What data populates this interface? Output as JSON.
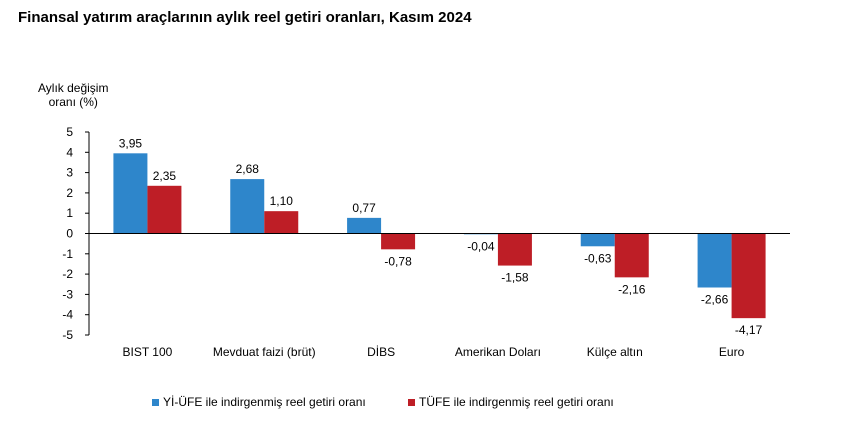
{
  "chart_data": {
    "type": "bar",
    "title": "Finansal yatırım araçlarının aylık reel getiri oranları, Kasım 2024",
    "ylabel_lines": [
      "Aylık değişim",
      "oranı (%)"
    ],
    "xlabel": "",
    "categories": [
      "BIST 100",
      "Mevduat faizi (brüt)",
      "DİBS",
      "Amerikan Doları",
      "Külçe altın",
      "Euro"
    ],
    "ylim": [
      -5,
      5
    ],
    "yticks": [
      5,
      4,
      3,
      2,
      1,
      0,
      -1,
      -2,
      -3,
      -4,
      -5
    ],
    "grid": false,
    "legend_position": "bottom",
    "series": [
      {
        "name": "Yİ-ÜFE ile indirgenmiş reel getiri oranı",
        "color": "#2e86cb",
        "values": [
          3.95,
          2.68,
          0.77,
          -0.04,
          -0.63,
          -2.66
        ],
        "labels": [
          "3,95",
          "2,68",
          "0,77",
          "-0,04",
          "-0,63",
          "-2,66"
        ]
      },
      {
        "name": "TÜFE ile indirgenmiş reel getiri oranı",
        "color": "#be1e26",
        "values": [
          2.35,
          1.1,
          -0.78,
          -1.58,
          -2.16,
          -4.17
        ],
        "labels": [
          "2,35",
          "1,10",
          "-0,78",
          "-1,58",
          "-2,16",
          "-4,17"
        ]
      }
    ]
  }
}
